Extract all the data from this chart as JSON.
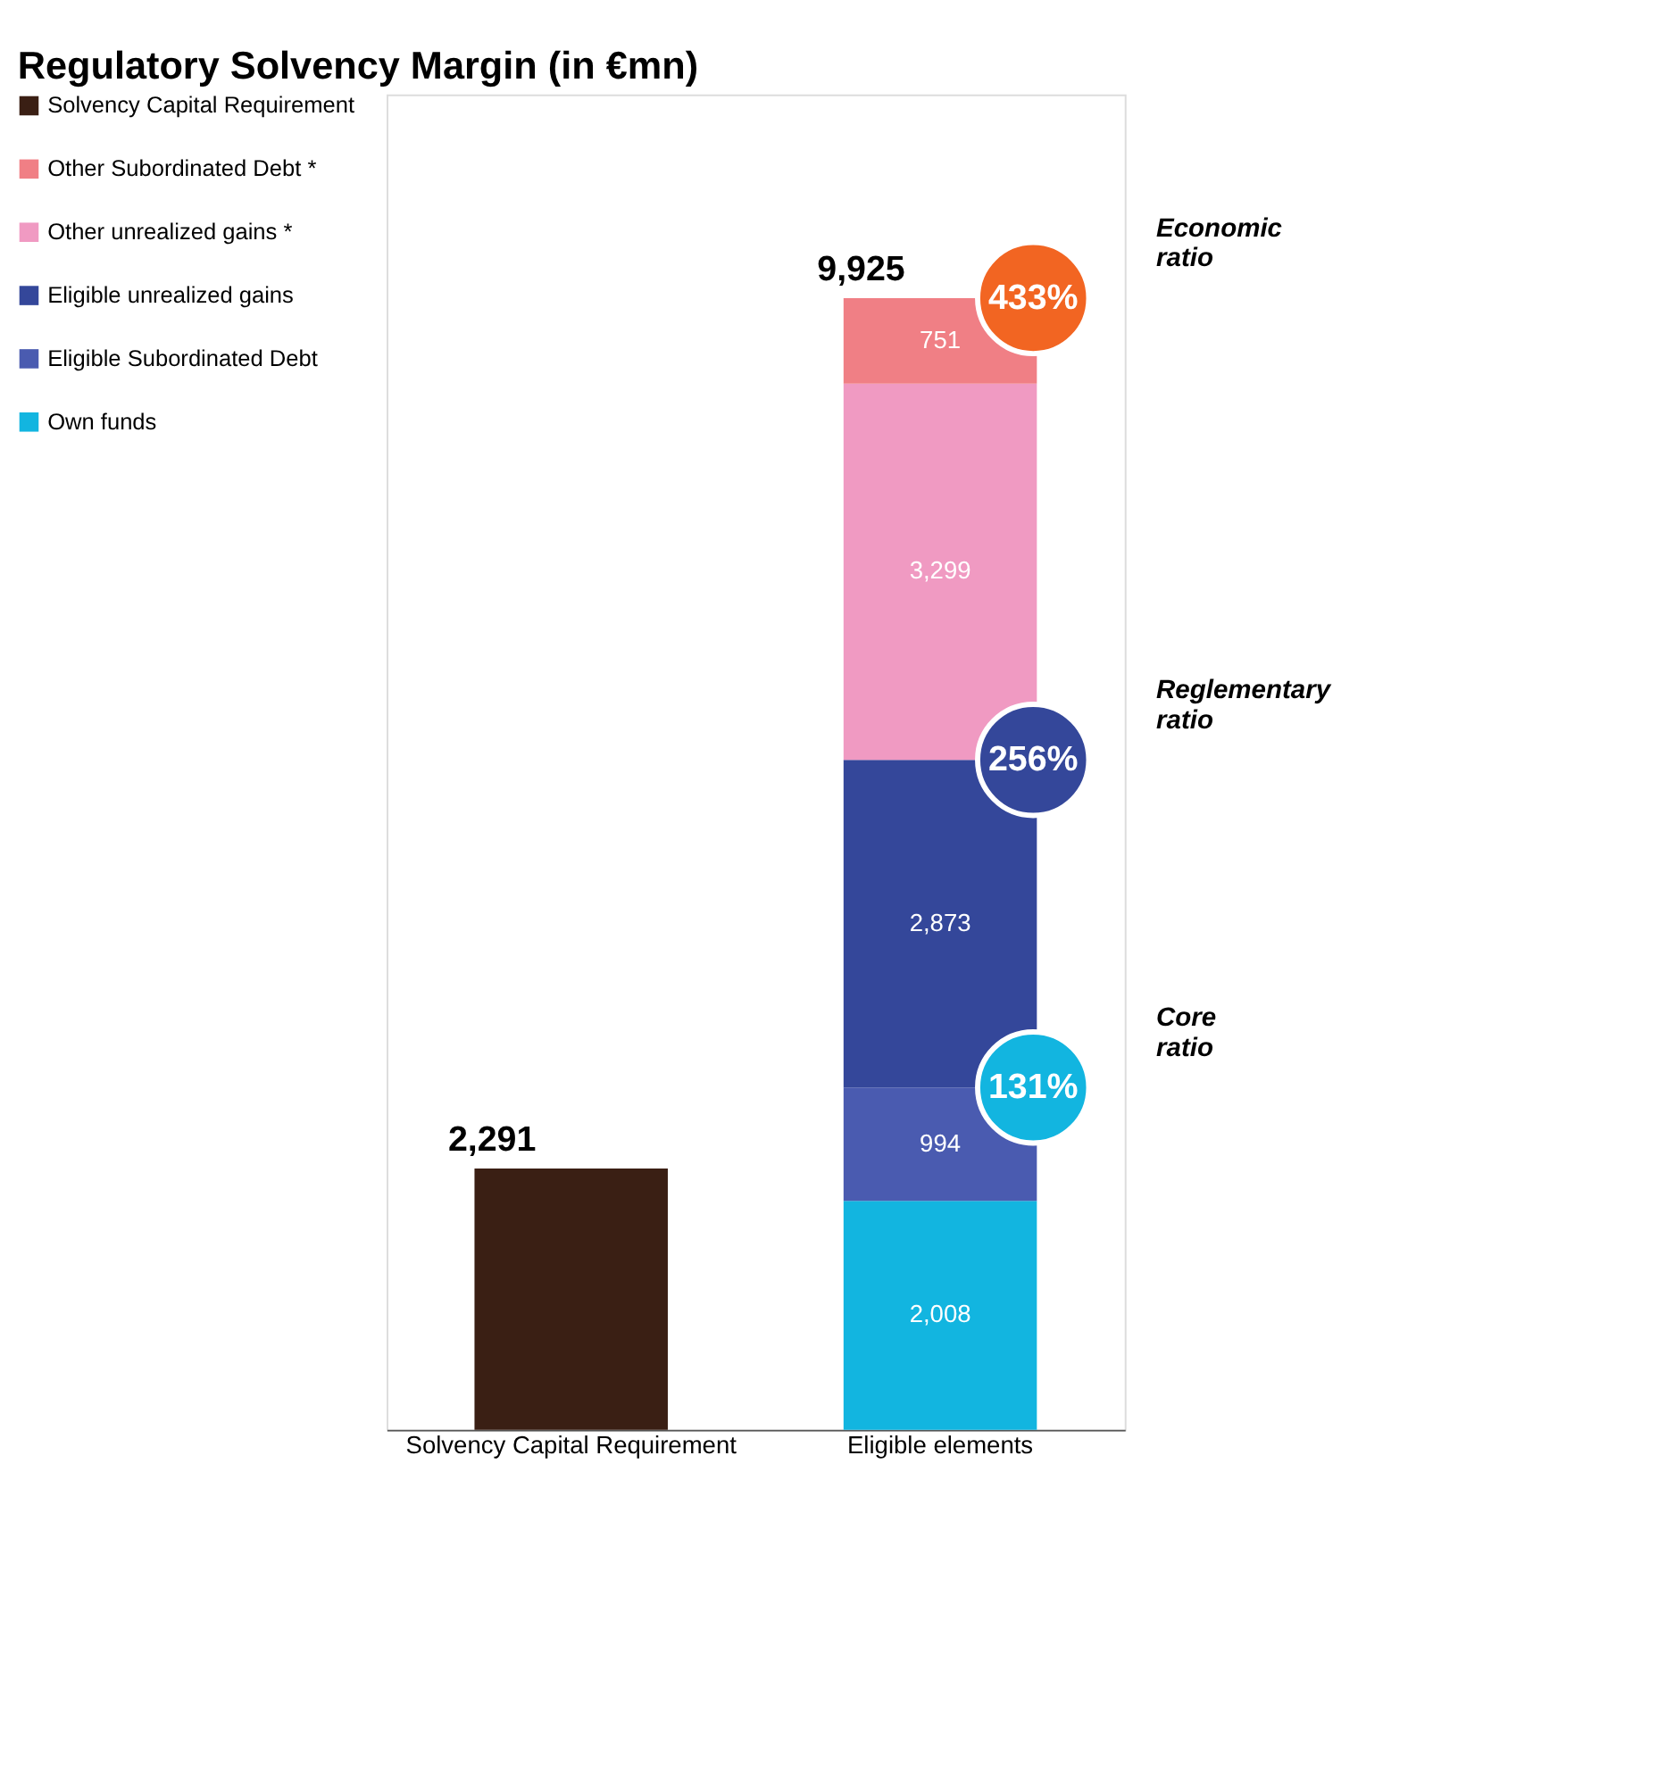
{
  "chart_data": {
    "type": "bar",
    "title": "Regulatory Solvency Margin (in €mn)",
    "categories": [
      "Solvency Capital Requirement",
      "Eligible elements"
    ],
    "stacked": true,
    "legend": "left",
    "series": [
      {
        "name": "Own funds",
        "color": "#12b5e0",
        "values": [
          null,
          2008
        ],
        "value_labels": [
          null,
          "2,008"
        ]
      },
      {
        "name": "Eligible Subordinated Debt",
        "color": "#4a5bb0",
        "values": [
          null,
          994
        ],
        "value_labels": [
          null,
          "994"
        ]
      },
      {
        "name": "Eligible unrealized gains",
        "color": "#34479a",
        "values": [
          null,
          2873
        ],
        "value_labels": [
          null,
          "2,873"
        ]
      },
      {
        "name": "Other unrealized gains *",
        "color": "#f09ac2",
        "values": [
          null,
          3299
        ],
        "value_labels": [
          null,
          "3,299"
        ]
      },
      {
        "name": "Other Subordinated Debt *",
        "color": "#f07f85",
        "values": [
          null,
          751
        ],
        "value_labels": [
          null,
          "751"
        ]
      },
      {
        "name": "Solvency Capital Requirement",
        "color": "#3a1f14",
        "values": [
          2291,
          null
        ]
      }
    ],
    "totals": [
      "2,291",
      "9,925"
    ],
    "annotations": [
      {
        "text": "433%",
        "x": "Eligible elements",
        "y": 9925
      },
      "Economic ratio",
      {
        "text": "256%",
        "x": "Eligible elements",
        "y": 5875
      },
      "Reglementary ratio",
      {
        "text": "131%",
        "x": "Eligible elements",
        "y": 3002
      },
      "Core ratio"
    ]
  }
}
